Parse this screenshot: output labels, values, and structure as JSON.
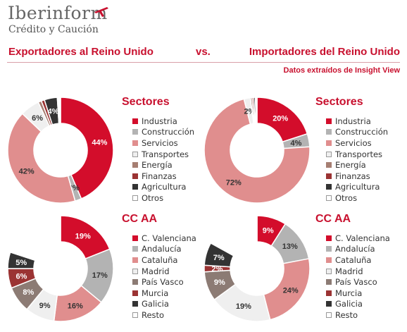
{
  "header": {
    "logo": "Iberinform",
    "logo_sub": "Crédito y Caución",
    "title_left": "Exportadores al Reino Unido",
    "title_vs": "vs.",
    "title_right": "Importadores del Reino Unido",
    "source": "Datos extraídos de Insight View"
  },
  "colors": {
    "brand": "#c8102e"
  },
  "chart_data": [
    {
      "type": "pie",
      "title": "Sectores",
      "group": "Exportadores al Reino Unido",
      "categories": [
        "Industria",
        "Construcción",
        "Servicios",
        "Transportes",
        "Energía",
        "Finanzas",
        "Agricultura",
        "Otros"
      ],
      "values": [
        44,
        2,
        42,
        6,
        1,
        1,
        4,
        1
      ],
      "labels": [
        "44%",
        "2%",
        "42%",
        "6%",
        "",
        "",
        "4%",
        ""
      ],
      "colors": [
        "#d30d2b",
        "#b3b3b3",
        "#e08e8e",
        "#efefef",
        "#a67e72",
        "#9b3333",
        "#333333",
        "#ffffff"
      ]
    },
    {
      "type": "pie",
      "title": "Sectores",
      "group": "Importadores del Reino Unido",
      "categories": [
        "Industria",
        "Construcción",
        "Servicios",
        "Transportes",
        "Energía",
        "Finanzas",
        "Agricultura",
        "Otros"
      ],
      "values": [
        20,
        4,
        72,
        2,
        0.5,
        0.5,
        0.5,
        0.5
      ],
      "labels": [
        "20%",
        "4%",
        "72%",
        "2%",
        "",
        "",
        "",
        ""
      ],
      "colors": [
        "#d30d2b",
        "#b3b3b3",
        "#e08e8e",
        "#efefef",
        "#a67e72",
        "#9b3333",
        "#333333",
        "#ffffff"
      ]
    },
    {
      "type": "pie",
      "title": "CC AA",
      "group": "Exportadores al Reino Unido",
      "categories": [
        "C. Valenciana",
        "Andalucía",
        "Cataluña",
        "Madrid",
        "País Vasco",
        "Murcia",
        "Galicia",
        "Resto"
      ],
      "values": [
        19,
        17,
        16,
        9,
        8,
        6,
        5,
        20
      ],
      "labels": [
        "19%",
        "17%",
        "16%",
        "9%",
        "8%",
        "6%",
        "5%",
        ""
      ],
      "colors": [
        "#d30d2b",
        "#b3b3b3",
        "#e08e8e",
        "#efefef",
        "#8c7b74",
        "#9b3333",
        "#333333",
        "#ffffff"
      ]
    },
    {
      "type": "pie",
      "title": "CC AA",
      "group": "Importadores del Reino Unido",
      "categories": [
        "C. Valenciana",
        "Andalucía",
        "Cataluña",
        "Madrid",
        "País Vasco",
        "Murcia",
        "Galicia",
        "Resto"
      ],
      "values": [
        9,
        13,
        24,
        19,
        9,
        2,
        7,
        17
      ],
      "labels": [
        "9%",
        "13%",
        "24%",
        "19%",
        "9%",
        "2%",
        "7%",
        ""
      ],
      "colors": [
        "#d30d2b",
        "#b3b3b3",
        "#e08e8e",
        "#efefef",
        "#8c7b74",
        "#9b3333",
        "#333333",
        "#ffffff"
      ]
    }
  ]
}
